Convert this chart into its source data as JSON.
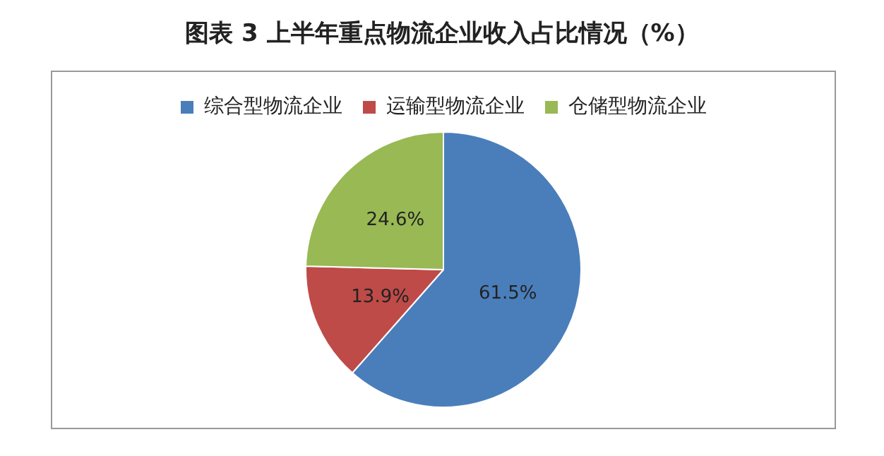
{
  "chart_data": {
    "type": "pie",
    "title": "图表 3  上半年重点物流企业收入占比情况（%）",
    "categories": [
      "综合型物流企业",
      "运输型物流企业",
      "仓储型物流企业"
    ],
    "values": [
      61.5,
      13.9,
      24.6
    ],
    "colors": [
      "#4a7ebb",
      "#be4b48",
      "#98b954"
    ],
    "value_labels": [
      "61.5%",
      "13.9%",
      "24.6%"
    ],
    "legend": "top"
  }
}
